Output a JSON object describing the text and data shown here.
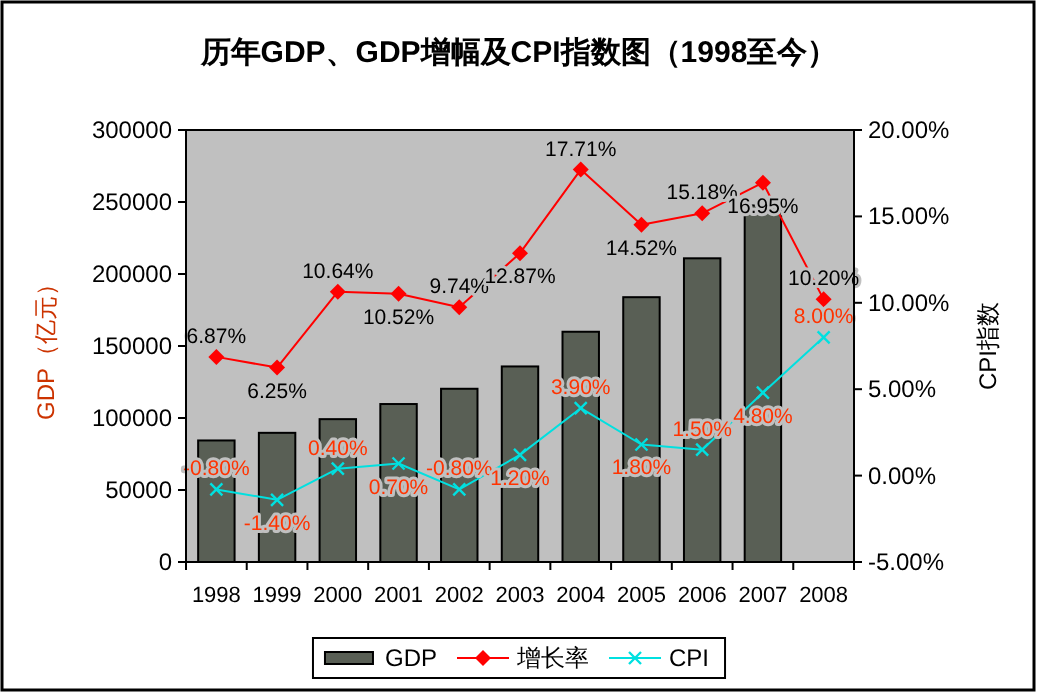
{
  "chart_data": {
    "type": "bar",
    "title": "历年GDP、GDP增幅及CPI指数图（1998至今）",
    "ylabel": "GDP（亿元）",
    "y2label": "CPI指数",
    "categories": [
      "1998",
      "1999",
      "2000",
      "2001",
      "2002",
      "2003",
      "2004",
      "2005",
      "2006",
      "2007",
      "2008"
    ],
    "series": [
      {
        "name": "GDP",
        "color": "#595f55",
        "values": [
          84400,
          89700,
          99200,
          109700,
          120300,
          135800,
          159900,
          183900,
          210900,
          247600,
          null
        ]
      },
      {
        "name": "增长率",
        "type": "line",
        "axis": "y2",
        "color": "#ff0000",
        "marker": "diamond",
        "values": [
          6.87,
          6.25,
          10.64,
          10.52,
          9.74,
          12.87,
          17.71,
          14.52,
          15.18,
          16.95,
          10.2
        ],
        "value_labels": [
          "6.87%",
          "6.25%",
          "10.64%",
          "10.52%",
          "9.74%",
          "12.87%",
          "17.71%",
          "14.52%",
          "15.18%",
          "16.95%",
          "10.20%"
        ]
      },
      {
        "name": "CPI",
        "type": "line",
        "axis": "y2",
        "color": "#00e0e0",
        "marker": "cross",
        "values": [
          -0.8,
          -1.4,
          0.4,
          0.7,
          -0.8,
          1.2,
          3.9,
          1.8,
          1.5,
          4.8,
          8.0
        ],
        "value_labels": [
          "-0.80%",
          "-1.40%",
          "0.40%",
          "0.70%",
          "-0.80%",
          "1.20%",
          "3.90%",
          "1.80%",
          "1.50%",
          "4.80%",
          "8.00%"
        ]
      }
    ],
    "ylim": [
      0,
      300000
    ],
    "yticks": [
      0,
      50000,
      100000,
      150000,
      200000,
      250000,
      300000
    ],
    "y2lim": [
      -5,
      20
    ],
    "y2ticks": [
      {
        "value": -5,
        "label": "-5.00%"
      },
      {
        "value": 0,
        "label": "0.00%"
      },
      {
        "value": 5,
        "label": "5.00%"
      },
      {
        "value": 10,
        "label": "10.00%"
      },
      {
        "value": 15,
        "label": "15.00%"
      },
      {
        "value": 20,
        "label": "20.00%"
      }
    ],
    "legend": "bottom"
  }
}
